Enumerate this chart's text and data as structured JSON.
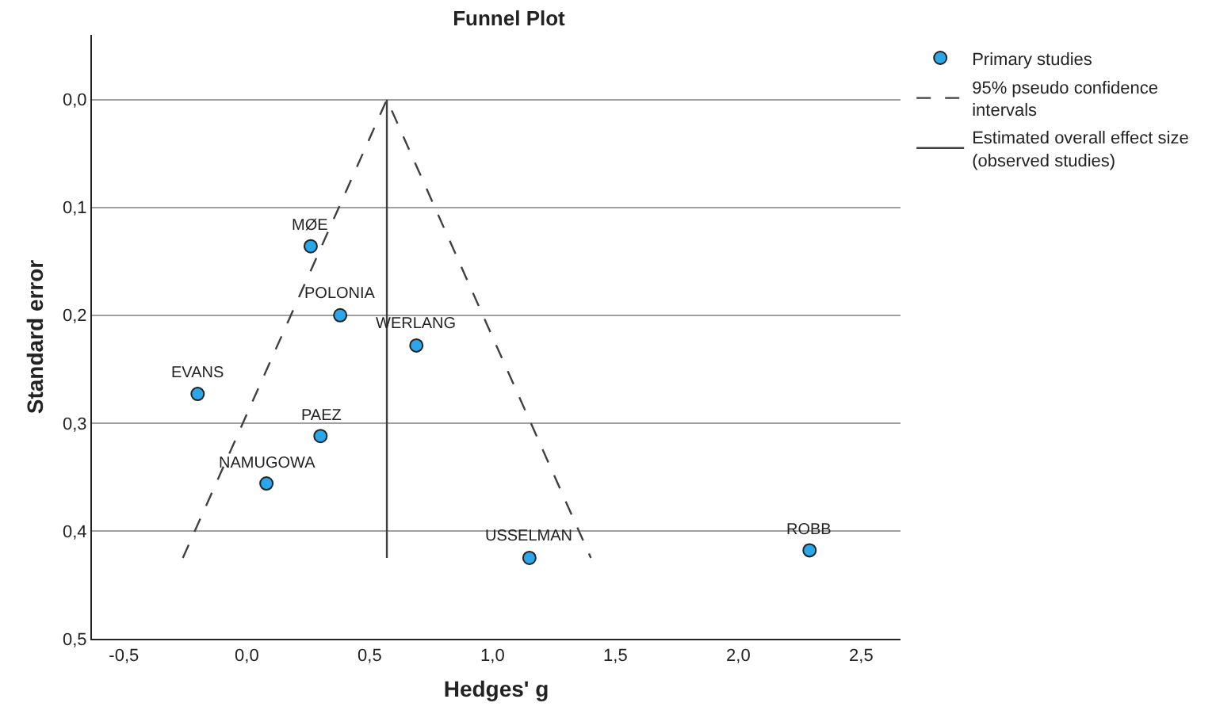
{
  "chart_data": {
    "type": "scatter",
    "title": "Funnel Plot",
    "xlabel": "Hedges' g",
    "ylabel": "Standard error",
    "series": [
      {
        "name": "Primary studies",
        "type": "scatter",
        "marker": "circle",
        "color": "#2ba6e8",
        "x": [
          0.26,
          0.38,
          0.69,
          -0.2,
          0.3,
          0.08,
          1.15,
          2.29
        ],
        "values": [
          0.136,
          0.2,
          0.228,
          0.273,
          0.312,
          0.356,
          0.425,
          0.418
        ]
      },
      {
        "name": "95% pseudo confidence intervals",
        "type": "line",
        "line_style": "dashed",
        "color": "#404040",
        "x": [
          -0.26,
          0.57,
          1.4
        ],
        "values": [
          0.425,
          0,
          0.425
        ]
      },
      {
        "name": "Estimated overall effect size (observed studies)",
        "type": "line",
        "line_style": "solid",
        "color": "#404040",
        "x": [
          0.57,
          0.57
        ],
        "values": [
          0,
          0.425
        ]
      }
    ],
    "annotations": [
      {
        "text": "MØE",
        "x": 0.26,
        "y": 0.136
      },
      {
        "text": "POLONIA",
        "x": 0.38,
        "y": 0.2
      },
      {
        "text": "WERLANG",
        "x": 0.69,
        "y": 0.228
      },
      {
        "text": "EVANS",
        "x": -0.2,
        "y": 0.273
      },
      {
        "text": "PAEZ",
        "x": 0.3,
        "y": 0.312
      },
      {
        "text": "NAMUGOWA",
        "x": 0.08,
        "y": 0.356
      },
      {
        "text": "USSELMAN",
        "x": 1.15,
        "y": 0.425
      },
      {
        "text": "ROBB",
        "x": 2.29,
        "y": 0.418
      }
    ],
    "xlim": [
      -0.63,
      2.66
    ],
    "xticks": [
      {
        "value": -0.5,
        "label": "-0,5"
      },
      {
        "value": 0,
        "label": "0,0"
      },
      {
        "value": 0.5,
        "label": "0,5"
      },
      {
        "value": 1,
        "label": "1,0"
      },
      {
        "value": 1.5,
        "label": "1,5"
      },
      {
        "value": 2,
        "label": "2,0"
      },
      {
        "value": 2.5,
        "label": "2,5"
      }
    ],
    "ylim": [
      0.5,
      -0.06
    ],
    "yticks": [
      {
        "value": 0,
        "label": "0,0"
      },
      {
        "value": 0.1,
        "label": "0,1"
      },
      {
        "value": 0.2,
        "label": "0,2"
      },
      {
        "value": 0.3,
        "label": "0,3"
      },
      {
        "value": 0.4,
        "label": "0,4"
      },
      {
        "value": 0.5,
        "label": "0,5"
      }
    ],
    "grid": "y",
    "legend": "top right"
  }
}
